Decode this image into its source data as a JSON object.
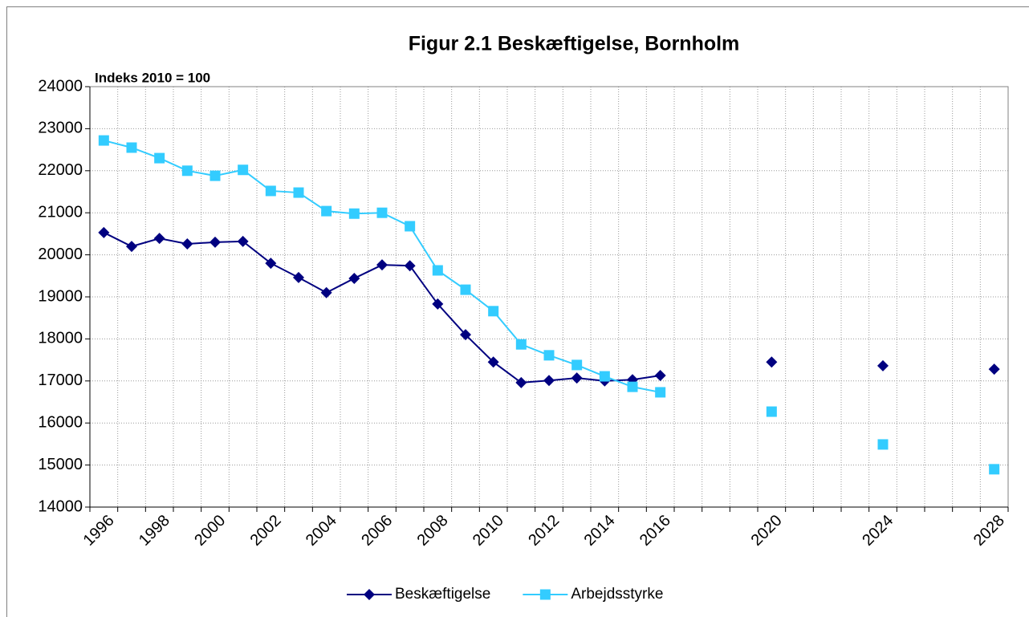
{
  "chart_data": {
    "type": "line",
    "title": "Figur 2.1 Beskæftigelse, Bornholm",
    "annotation": "Indeks 2010 = 100",
    "categories": [
      "1996",
      null,
      "1998",
      null,
      "2000",
      null,
      "2002",
      null,
      "2004",
      null,
      "2006",
      null,
      "2008",
      null,
      "2010",
      null,
      "2012",
      null,
      "2014",
      null,
      "2016",
      null,
      null,
      null,
      "2020",
      null,
      null,
      null,
      "2024",
      null,
      null,
      null,
      "2028"
    ],
    "series": [
      {
        "name": "Beskæftigelse",
        "color": "#000080",
        "marker": "diamond",
        "values": [
          20530,
          20200,
          20390,
          20260,
          20300,
          20320,
          19800,
          19460,
          19100,
          19440,
          19760,
          19740,
          18830,
          18100,
          17450,
          16960,
          17010,
          17070,
          17000,
          17030,
          17130,
          null,
          null,
          null,
          17450,
          null,
          null,
          null,
          17360,
          null,
          null,
          null,
          17280
        ]
      },
      {
        "name": "Arbejdsstyrke",
        "color": "#33ccff",
        "marker": "square",
        "values": [
          22720,
          22550,
          22300,
          22000,
          21880,
          22020,
          21520,
          21480,
          21040,
          20980,
          21000,
          20680,
          19630,
          19170,
          18660,
          17870,
          17610,
          17380,
          17110,
          16860,
          16730,
          null,
          null,
          null,
          16270,
          null,
          null,
          null,
          15490,
          null,
          null,
          null,
          14900
        ]
      }
    ],
    "ylim": [
      14000,
      24000
    ],
    "yticks": [
      14000,
      15000,
      16000,
      17000,
      18000,
      19000,
      20000,
      21000,
      22000,
      23000,
      24000
    ],
    "grid": true,
    "legend": "bottom"
  }
}
